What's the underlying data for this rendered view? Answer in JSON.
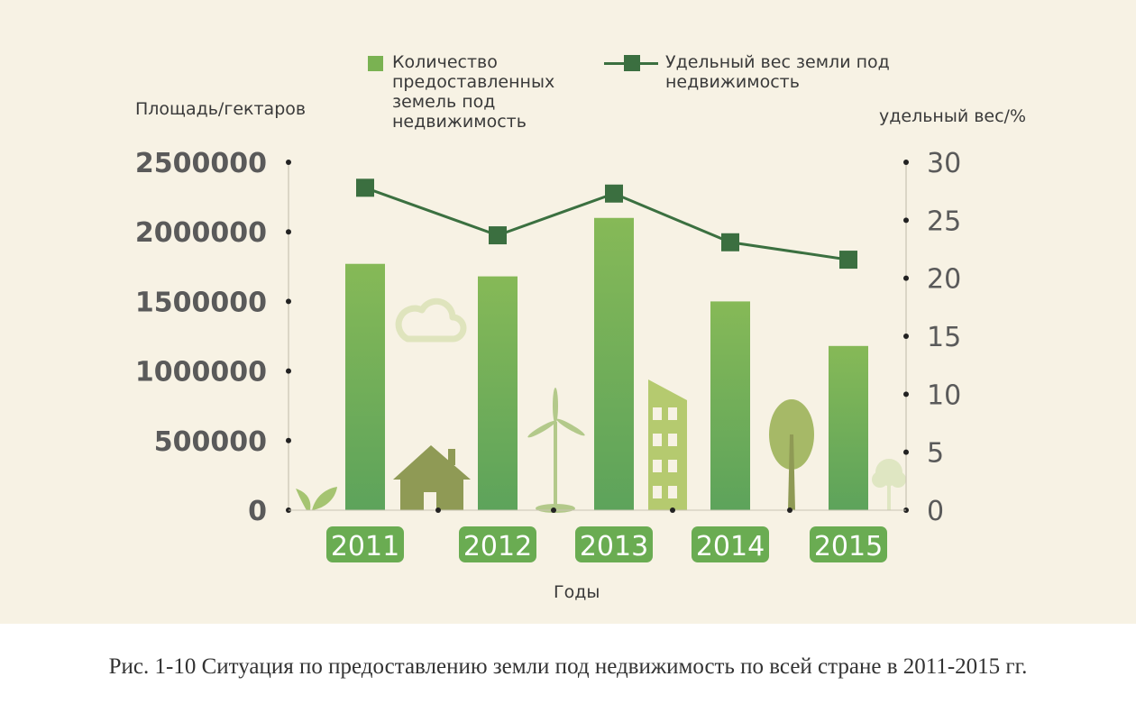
{
  "chart_data": {
    "type": "bar",
    "categories": [
      "2011",
      "2012",
      "2013",
      "2014",
      "2015"
    ],
    "series": [
      {
        "name": "Количество предоставленных земель под недвижимость",
        "type": "bar",
        "axis": "left",
        "values": [
          1770000,
          1680000,
          2100000,
          1500000,
          1180000
        ]
      },
      {
        "name": "Удельный вес земли под недвижимость",
        "type": "line",
        "axis": "right",
        "values": [
          27.8,
          23.7,
          27.3,
          23.1,
          21.6
        ]
      }
    ],
    "ylabel": "Площадь/гектаров",
    "y2label": "удельный вес/%",
    "xlabel": "Годы",
    "ylim": [
      0,
      2500000
    ],
    "y2lim": [
      0,
      30
    ],
    "yticks": [
      "0",
      "500000",
      "1000000",
      "1500000",
      "2000000",
      "2500000"
    ],
    "y2ticks": [
      "0",
      "5",
      "10",
      "15",
      "20",
      "25",
      "30"
    ],
    "legend_position": "top",
    "grid": false
  },
  "legend": {
    "bar_label": "Количество\nпредоставленных\nземель под\nнедвижимость",
    "line_label": "Удельный вес земли под\nнедвижимость"
  },
  "caption": "Рис. 1-10 Ситуация по предоставлению земли под недвижимость по всей стране в 2011-2015 гг.",
  "colors": {
    "bar_top": "#86b957",
    "bar_bottom": "#5da35b",
    "line": "#3b7040",
    "marker": "#3b6f40",
    "year_label_bg": "#6aac52",
    "tick_text": "#5a5a5a",
    "background": "#f7f2e4"
  }
}
